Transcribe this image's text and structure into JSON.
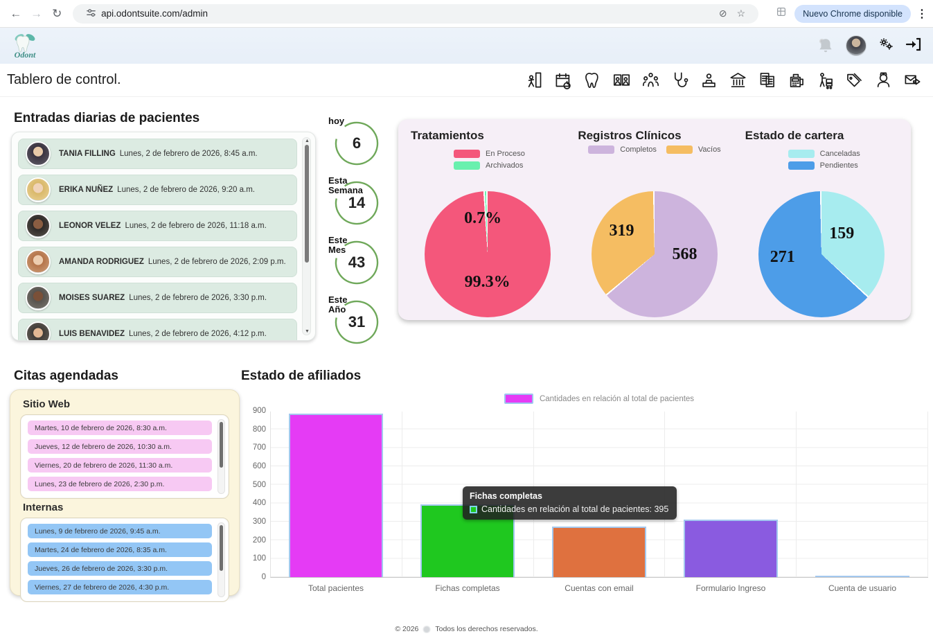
{
  "browser": {
    "url": "api.odontsuite.com/admin",
    "update_pill": "Nuevo Chrome disponible"
  },
  "brand": {
    "name": "Odont"
  },
  "page": {
    "title": "Tablero de control.",
    "footer_prefix": "© 2026",
    "footer_suffix": "Todos los derechos reservados."
  },
  "module_icons": [
    "patient-entry-icon",
    "appointments-calendar-icon",
    "tooth-icon",
    "patients-icon",
    "staff-group-icon",
    "stethoscope-icon",
    "reception-icon",
    "bank-icon",
    "invoices-icon",
    "cash-register-icon",
    "supplier-cart-icon",
    "price-tags-icon",
    "nurse-icon",
    "mail-forward-icon"
  ],
  "entradas": {
    "title": "Entradas diarias de pacientes",
    "patients": [
      {
        "name": "TANIA FILLING",
        "datetime": "Lunes, 2 de febrero de 2026, 8:45 a.m."
      },
      {
        "name": "ERIKA NUÑEZ",
        "datetime": "Lunes, 2 de febrero de 2026, 9:20 a.m."
      },
      {
        "name": "LEONOR VELEZ",
        "datetime": "Lunes, 2 de febrero de 2026, 11:18 a.m."
      },
      {
        "name": "AMANDA RODRIGUEZ",
        "datetime": "Lunes, 2 de febrero de 2026, 2:09 p.m."
      },
      {
        "name": "MOISES SUAREZ",
        "datetime": "Lunes, 2 de febrero de 2026, 3:30 p.m."
      },
      {
        "name": "LUIS BENAVIDEZ",
        "datetime": "Lunes, 2 de febrero de 2026, 4:12 p.m."
      }
    ]
  },
  "stats": [
    {
      "label": "hoy",
      "value": "6"
    },
    {
      "label": "Esta Semana",
      "value": "14"
    },
    {
      "label": "Este Mes",
      "value": "43"
    },
    {
      "label": "Este Año",
      "value": "31"
    }
  ],
  "citas": {
    "title": "Citas agendadas",
    "sections": [
      {
        "label": "Sitio Web",
        "items": [
          "Martes, 10 de febrero de 2026, 8:30 a.m.",
          "Jueves, 12 de febrero de 2026, 10:30 a.m.",
          "Viernes, 20 de febrero de 2026, 11:30 a.m.",
          "Lunes, 23 de febrero de 2026, 2:30 p.m."
        ]
      },
      {
        "label": "Internas",
        "items": [
          "Lunes, 9 de febrero de 2026, 9:45 a.m.",
          "Martes, 24 de febrero de 2026, 8:35 a.m.",
          "Jueves, 26 de febrero de 2026, 3:30 p.m.",
          "Viernes, 27 de febrero de 2026, 4:30 p.m."
        ]
      }
    ]
  },
  "afiliados": {
    "title": "Estado de afiliados",
    "tooltip": {
      "title": "Fichas completas",
      "text": "Cantidades en relación al total de pacientes: 395"
    }
  },
  "chart_data": [
    {
      "type": "pie",
      "title": "Tratamientos",
      "labels": [
        "En Proceso",
        "Archivados"
      ],
      "values": [
        99.3,
        0.7
      ],
      "value_labels": [
        "99.3%",
        "0.7%"
      ],
      "colors": [
        "#f4577b",
        "#69f0ae"
      ],
      "legend_position": "top-stacked"
    },
    {
      "type": "pie",
      "title": "Registros Clínicos",
      "labels": [
        "Completos",
        "Vacíos"
      ],
      "values": [
        568,
        319
      ],
      "value_labels": [
        "568",
        "319"
      ],
      "colors": [
        "#cdb4dd",
        "#f5bd62"
      ],
      "legend_position": "top-row"
    },
    {
      "type": "pie",
      "title": "Estado de cartera",
      "labels": [
        "Canceladas",
        "Pendientes"
      ],
      "values": [
        159,
        271
      ],
      "value_labels": [
        "159",
        "271"
      ],
      "colors": [
        "#a7ecef",
        "#4d9de8"
      ],
      "legend_position": "top-stacked"
    },
    {
      "type": "bar",
      "title": "Estado de afiliados",
      "legend": [
        "Cantidades en relación al total de pacientes"
      ],
      "categories": [
        "Total pacientes",
        "Fichas completas",
        "Cuentas con email",
        "Formulario Ingreso",
        "Cuenta de usuario"
      ],
      "values": [
        885,
        395,
        275,
        310,
        4
      ],
      "colors": [
        "#e53bf5",
        "#1fc81f",
        "#df713f",
        "#8a5be0",
        "#52c9a8"
      ],
      "ylim": [
        0,
        900
      ],
      "ytick_step": 100,
      "grid": true,
      "legend_position": "top-center"
    }
  ]
}
